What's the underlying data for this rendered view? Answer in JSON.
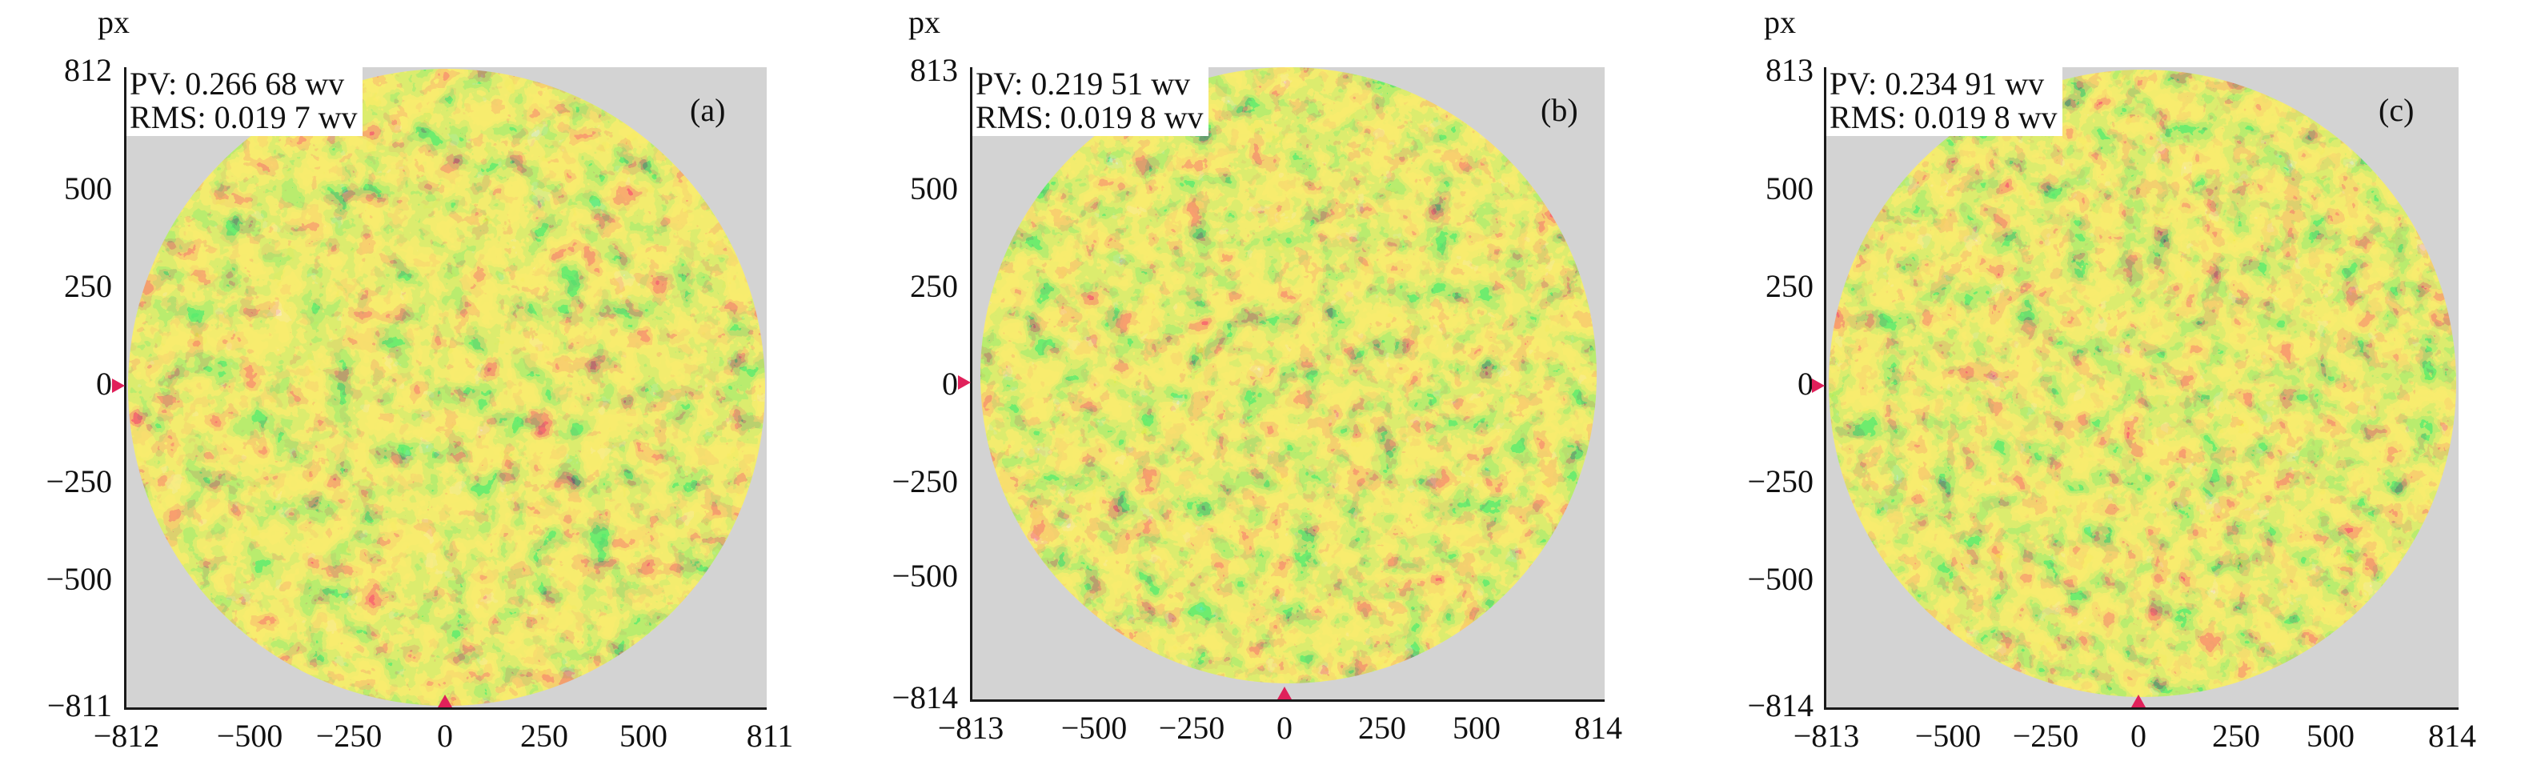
{
  "panels": [
    {
      "tag": "(a)",
      "unit": "px",
      "pv": "PV: 0.266 68 wv",
      "rms": "RMS: 0.019 7 wv",
      "y_ticks": [
        "812",
        "500",
        "250",
        "0",
        "−250",
        "−500",
        "−811"
      ],
      "x_ticks": [
        "−812",
        "−500",
        "−250",
        "0",
        "250",
        "500",
        "811"
      ]
    },
    {
      "tag": "(b)",
      "unit": "px",
      "pv": "PV: 0.219 51 wv",
      "rms": "RMS: 0.019 8 wv",
      "y_ticks": [
        "813",
        "500",
        "250",
        "0",
        "−250",
        "−500",
        "−814"
      ],
      "x_ticks": [
        "−813",
        "−500",
        "−250",
        "0",
        "250",
        "500",
        "814"
      ]
    },
    {
      "tag": "(c)",
      "unit": "px",
      "pv": "PV: 0.234 91 wv",
      "rms": "RMS: 0.019 8 wv",
      "y_ticks": [
        "813",
        "500",
        "250",
        "0",
        "−250",
        "−500",
        "−814"
      ],
      "x_ticks": [
        "−813",
        "−500",
        "−250",
        "0",
        "250",
        "500",
        "814"
      ]
    }
  ],
  "colors": {
    "background": "#d3d3d3",
    "map_palette": [
      "#1c2a6e",
      "#2a6a3a",
      "#7dbb2a",
      "#b7d62a",
      "#e6d62a",
      "#f0a028",
      "#ee5a24",
      "#e02818"
    ],
    "marker": "#e0205a"
  }
}
